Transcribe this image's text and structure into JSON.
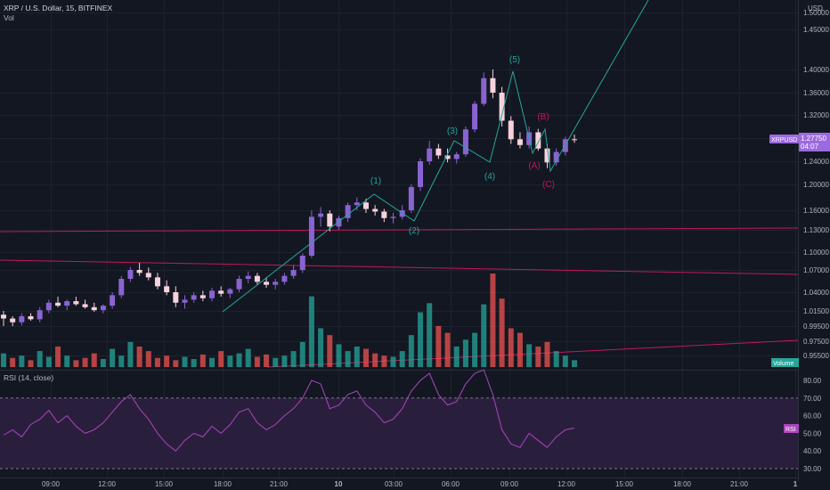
{
  "header": {
    "symbol_line": "XRP / U.S. Dollar, 15, BITFINEX",
    "vol_label": "Vol",
    "currency": "USD"
  },
  "price_axis": {
    "ticks": [
      "1.50000",
      "1.45000",
      "1.40000",
      "1.36000",
      "1.32000",
      "1.28000",
      "1.24000",
      "1.20000",
      "1.16000",
      "1.13000",
      "1.10000",
      "1.07000",
      "1.04000",
      "1.01500",
      "0.99500",
      "0.97500",
      "0.95500"
    ],
    "last_price_label": "XRPUSD",
    "last_price": "1.27750",
    "countdown": "04:07",
    "volume_badge": "Volume"
  },
  "rsi": {
    "title": "RSI (14, close)",
    "ticks": [
      "80.00",
      "70.00",
      "60.00",
      "50.00",
      "40.00",
      "30.00"
    ],
    "badge": "RSI",
    "levels": [
      70,
      30
    ]
  },
  "time_axis": [
    "09:00",
    "12:00",
    "15:00",
    "18:00",
    "21:00",
    "10",
    "03:00",
    "06:00",
    "09:00",
    "12:00",
    "15:00",
    "18:00",
    "21:00",
    "1"
  ],
  "waves": [
    {
      "label": "(1)",
      "group": "impulse"
    },
    {
      "label": "(2)",
      "group": "impulse"
    },
    {
      "label": "(3)",
      "group": "impulse"
    },
    {
      "label": "(4)",
      "group": "impulse"
    },
    {
      "label": "(5)",
      "group": "impulse"
    },
    {
      "label": "(A)",
      "group": "corrective"
    },
    {
      "label": "(B)",
      "group": "corrective"
    },
    {
      "label": "(C)",
      "group": "corrective"
    }
  ],
  "colors": {
    "background": "#131722",
    "up_candle": "#8a63d2",
    "down_candle": "#f7d2dc",
    "vol_up": "#26a69a",
    "vol_down": "#ef5350",
    "impulse": "#26a69a",
    "corrective": "#c2185b",
    "trendline": "#c2185b",
    "rsi_line": "#ab47bc",
    "rsi_band": "#2a1e3d",
    "price_badge": "#9c6ade",
    "volume_badge": "#26a69a"
  },
  "chart_data": {
    "type": "candlestick",
    "symbol": "XRP / U.S. Dollar",
    "interval": "15",
    "exchange": "BITFINEX",
    "ohlc": [
      [
        1.01,
        1.015,
        0.995,
        1.005
      ],
      [
        1.005,
        1.008,
        0.995,
        1.0
      ],
      [
        1.0,
        1.012,
        0.996,
        1.008
      ],
      [
        1.008,
        1.012,
        1.002,
        1.004
      ],
      [
        1.004,
        1.02,
        1.0,
        1.016
      ],
      [
        1.016,
        1.03,
        1.012,
        1.026
      ],
      [
        1.026,
        1.034,
        1.02,
        1.022
      ],
      [
        1.022,
        1.03,
        1.016,
        1.028
      ],
      [
        1.028,
        1.034,
        1.022,
        1.024
      ],
      [
        1.024,
        1.03,
        1.018,
        1.02
      ],
      [
        1.02,
        1.026,
        1.014,
        1.016
      ],
      [
        1.016,
        1.024,
        1.012,
        1.022
      ],
      [
        1.022,
        1.04,
        1.018,
        1.036
      ],
      [
        1.036,
        1.062,
        1.032,
        1.058
      ],
      [
        1.058,
        1.075,
        1.054,
        1.07
      ],
      [
        1.07,
        1.082,
        1.062,
        1.066
      ],
      [
        1.066,
        1.074,
        1.056,
        1.06
      ],
      [
        1.06,
        1.066,
        1.044,
        1.048
      ],
      [
        1.048,
        1.056,
        1.036,
        1.04
      ],
      [
        1.04,
        1.048,
        1.02,
        1.026
      ],
      [
        1.026,
        1.036,
        1.018,
        1.03
      ],
      [
        1.03,
        1.04,
        1.026,
        1.036
      ],
      [
        1.036,
        1.042,
        1.028,
        1.032
      ],
      [
        1.032,
        1.046,
        1.028,
        1.042
      ],
      [
        1.042,
        1.048,
        1.034,
        1.038
      ],
      [
        1.038,
        1.046,
        1.032,
        1.044
      ],
      [
        1.044,
        1.062,
        1.04,
        1.058
      ],
      [
        1.058,
        1.068,
        1.052,
        1.062
      ],
      [
        1.062,
        1.066,
        1.05,
        1.054
      ],
      [
        1.054,
        1.06,
        1.046,
        1.05
      ],
      [
        1.05,
        1.058,
        1.044,
        1.054
      ],
      [
        1.054,
        1.066,
        1.05,
        1.062
      ],
      [
        1.062,
        1.078,
        1.058,
        1.07
      ],
      [
        1.07,
        1.098,
        1.066,
        1.094
      ],
      [
        1.094,
        1.16,
        1.09,
        1.15
      ],
      [
        1.15,
        1.165,
        1.135,
        1.155
      ],
      [
        1.155,
        1.16,
        1.128,
        1.135
      ],
      [
        1.135,
        1.152,
        1.13,
        1.148
      ],
      [
        1.148,
        1.172,
        1.142,
        1.168
      ],
      [
        1.168,
        1.18,
        1.16,
        1.172
      ],
      [
        1.172,
        1.178,
        1.156,
        1.162
      ],
      [
        1.162,
        1.168,
        1.152,
        1.158
      ],
      [
        1.158,
        1.162,
        1.142,
        1.148
      ],
      [
        1.148,
        1.156,
        1.14,
        1.15
      ],
      [
        1.15,
        1.168,
        1.146,
        1.16
      ],
      [
        1.16,
        1.2,
        1.156,
        1.196
      ],
      [
        1.196,
        1.245,
        1.19,
        1.24
      ],
      [
        1.24,
        1.275,
        1.234,
        1.262
      ],
      [
        1.262,
        1.27,
        1.244,
        1.25
      ],
      [
        1.25,
        1.262,
        1.238,
        1.244
      ],
      [
        1.244,
        1.256,
        1.236,
        1.252
      ],
      [
        1.252,
        1.3,
        1.248,
        1.295
      ],
      [
        1.295,
        1.345,
        1.29,
        1.34
      ],
      [
        1.34,
        1.395,
        1.336,
        1.385
      ],
      [
        1.385,
        1.4,
        1.35,
        1.36
      ],
      [
        1.36,
        1.37,
        1.3,
        1.31
      ],
      [
        1.31,
        1.318,
        1.27,
        1.278
      ],
      [
        1.278,
        1.29,
        1.262,
        1.268
      ],
      [
        1.268,
        1.3,
        1.262,
        1.29
      ],
      [
        1.29,
        1.296,
        1.258,
        1.262
      ],
      [
        1.262,
        1.27,
        1.228,
        1.238
      ],
      [
        1.238,
        1.262,
        1.232,
        1.256
      ],
      [
        1.256,
        1.282,
        1.25,
        1.278
      ],
      [
        1.278,
        1.286,
        1.272,
        1.2775
      ]
    ],
    "volume": [
      12,
      8,
      10,
      6,
      14,
      9,
      18,
      10,
      6,
      8,
      12,
      7,
      16,
      10,
      22,
      18,
      14,
      8,
      10,
      6,
      9,
      7,
      11,
      8,
      14,
      10,
      12,
      16,
      9,
      11,
      8,
      10,
      14,
      22,
      62,
      34,
      28,
      20,
      14,
      18,
      16,
      12,
      10,
      9,
      14,
      28,
      48,
      56,
      36,
      30,
      18,
      24,
      30,
      55,
      82,
      60,
      34,
      30,
      20,
      18,
      22,
      14,
      10,
      6
    ],
    "volume_up": [
      true,
      false,
      true,
      false,
      true,
      true,
      false,
      true,
      false,
      false,
      false,
      true,
      true,
      true,
      true,
      false,
      false,
      false,
      false,
      false,
      true,
      true,
      false,
      true,
      false,
      true,
      true,
      true,
      false,
      false,
      true,
      true,
      true,
      true,
      true,
      true,
      false,
      true,
      true,
      true,
      false,
      false,
      false,
      true,
      true,
      true,
      true,
      true,
      false,
      false,
      true,
      true,
      true,
      true,
      false,
      false,
      false,
      false,
      true,
      false,
      false,
      true,
      true,
      true
    ],
    "rsi": [
      49,
      52,
      48,
      55,
      58,
      63,
      56,
      60,
      54,
      50,
      52,
      56,
      62,
      68,
      72,
      64,
      58,
      50,
      44,
      40,
      46,
      50,
      48,
      54,
      50,
      55,
      62,
      64,
      56,
      52,
      55,
      60,
      64,
      70,
      80,
      78,
      64,
      66,
      72,
      74,
      66,
      62,
      56,
      58,
      64,
      74,
      80,
      84,
      72,
      66,
      68,
      78,
      84,
      86,
      72,
      52,
      44,
      42,
      50,
      46,
      42,
      48,
      52,
      53
    ],
    "xlabel": "",
    "ylabel": "",
    "ylim": [
      0.955,
      1.5
    ],
    "rsi_range": [
      30,
      80
    ]
  }
}
